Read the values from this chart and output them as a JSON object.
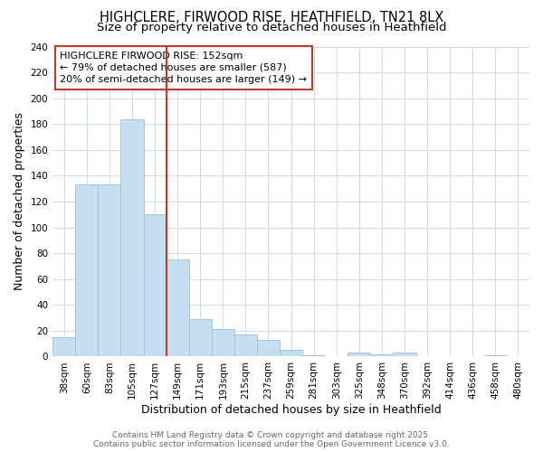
{
  "title_line1": "HIGHCLERE, FIRWOOD RISE, HEATHFIELD, TN21 8LX",
  "title_line2": "Size of property relative to detached houses in Heathfield",
  "xlabel": "Distribution of detached houses by size in Heathfield",
  "ylabel": "Number of detached properties",
  "categories": [
    "38sqm",
    "60sqm",
    "83sqm",
    "105sqm",
    "127sqm",
    "149sqm",
    "171sqm",
    "193sqm",
    "215sqm",
    "237sqm",
    "259sqm",
    "281sqm",
    "303sqm",
    "325sqm",
    "348sqm",
    "370sqm",
    "392sqm",
    "414sqm",
    "436sqm",
    "458sqm",
    "480sqm"
  ],
  "values": [
    15,
    133,
    133,
    184,
    110,
    75,
    29,
    21,
    17,
    13,
    5,
    1,
    0,
    3,
    2,
    3,
    0,
    0,
    0,
    1,
    0
  ],
  "bar_color": "#c5dff0",
  "bar_edge_color": "#a0c4e0",
  "vline_color": "#c0392b",
  "vline_index": 5,
  "annotation_box_text": "HIGHCLERE FIRWOOD RISE: 152sqm\n← 79% of detached houses are smaller (587)\n20% of semi-detached houses are larger (149) →",
  "annotation_box_color": "#c0392b",
  "annotation_box_fill": "#ffffff",
  "ylim": [
    0,
    240
  ],
  "yticks": [
    0,
    20,
    40,
    60,
    80,
    100,
    120,
    140,
    160,
    180,
    200,
    220,
    240
  ],
  "plot_bg_color": "#ffffff",
  "fig_bg_color": "#ffffff",
  "grid_color": "#d0dce8",
  "footer_text": "Contains HM Land Registry data © Crown copyright and database right 2025.\nContains public sector information licensed under the Open Government Licence v3.0.",
  "title_fontsize": 10.5,
  "subtitle_fontsize": 9.5,
  "axis_label_fontsize": 9,
  "tick_fontsize": 7.5,
  "annotation_fontsize": 8,
  "footer_fontsize": 6.5
}
